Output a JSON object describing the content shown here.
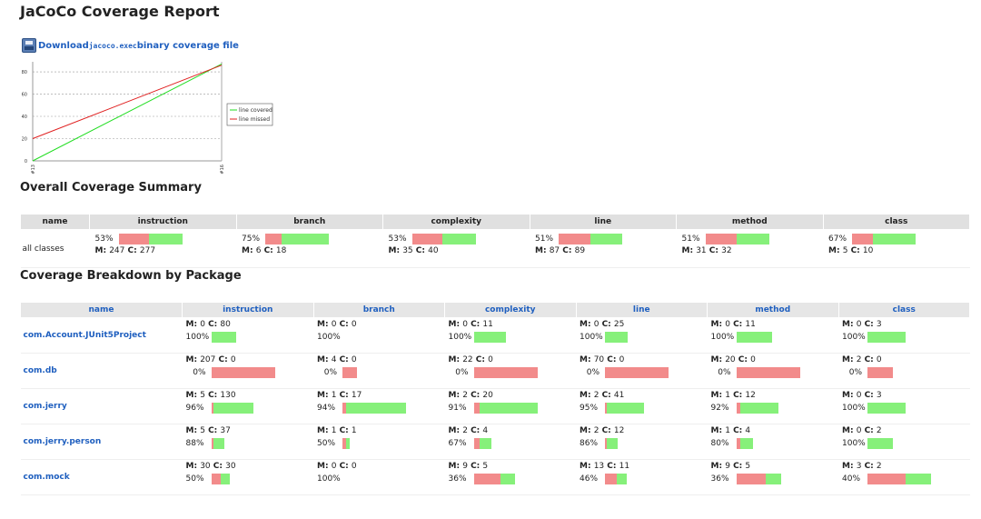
{
  "title": "JaCoCo Coverage Report",
  "download": {
    "prefix": "Download ",
    "file": "jacoco.exec",
    "suffix": " binary coverage file",
    "icon": "floppy-disk-icon"
  },
  "trend_chart": {
    "type": "line",
    "x": [
      "#13",
      "#16"
    ],
    "yticks": [
      0,
      20,
      40,
      60,
      80
    ],
    "ylim": [
      0,
      89
    ],
    "series": [
      {
        "name": "line covered",
        "values": [
          0,
          87
        ],
        "color": "#22dd22"
      },
      {
        "name": "line missed",
        "values": [
          20,
          86
        ],
        "color": "#e02020"
      }
    ]
  },
  "summary": {
    "heading": "Overall Coverage Summary",
    "headers": [
      "name",
      "instruction",
      "branch",
      "complexity",
      "line",
      "method",
      "class"
    ],
    "row": {
      "name": "all classes",
      "cells": [
        {
          "pct": "53%",
          "missed": "247",
          "covered": "277",
          "m": 247,
          "c": 277
        },
        {
          "pct": "75%",
          "missed": "6",
          "covered": "18",
          "m": 6,
          "c": 18
        },
        {
          "pct": "53%",
          "missed": "35",
          "covered": "40",
          "m": 35,
          "c": 40
        },
        {
          "pct": "51%",
          "missed": "87",
          "covered": "89",
          "m": 87,
          "c": 89
        },
        {
          "pct": "51%",
          "missed": "31",
          "covered": "32",
          "m": 31,
          "c": 32
        },
        {
          "pct": "67%",
          "missed": "5",
          "covered": "10",
          "m": 5,
          "c": 10
        }
      ]
    }
  },
  "packages": {
    "heading": "Coverage Breakdown by Package",
    "headers": [
      "name",
      "instruction",
      "branch",
      "complexity",
      "line",
      "method",
      "class"
    ],
    "rows": [
      {
        "name": "com.Account.JUnit5Project",
        "cells": [
          {
            "missed": "0",
            "covered": "80",
            "pct": "100%",
            "m": 0,
            "c": 80
          },
          {
            "missed": "0",
            "covered": "0",
            "pct": "100%",
            "m": 0,
            "c": 0
          },
          {
            "missed": "0",
            "covered": "11",
            "pct": "100%",
            "m": 0,
            "c": 11
          },
          {
            "missed": "0",
            "covered": "25",
            "pct": "100%",
            "m": 0,
            "c": 25
          },
          {
            "missed": "0",
            "covered": "11",
            "pct": "100%",
            "m": 0,
            "c": 11
          },
          {
            "missed": "0",
            "covered": "3",
            "pct": "100%",
            "m": 0,
            "c": 3
          }
        ]
      },
      {
        "name": "com.db",
        "cells": [
          {
            "missed": "207",
            "covered": "0",
            "pct": "0%",
            "m": 207,
            "c": 0
          },
          {
            "missed": "4",
            "covered": "0",
            "pct": "0%",
            "m": 4,
            "c": 0
          },
          {
            "missed": "22",
            "covered": "0",
            "pct": "0%",
            "m": 22,
            "c": 0
          },
          {
            "missed": "70",
            "covered": "0",
            "pct": "0%",
            "m": 70,
            "c": 0
          },
          {
            "missed": "20",
            "covered": "0",
            "pct": "0%",
            "m": 20,
            "c": 0
          },
          {
            "missed": "2",
            "covered": "0",
            "pct": "0%",
            "m": 2,
            "c": 0
          }
        ]
      },
      {
        "name": "com.jerry",
        "cells": [
          {
            "missed": "5",
            "covered": "130",
            "pct": "96%",
            "m": 5,
            "c": 130
          },
          {
            "missed": "1",
            "covered": "17",
            "pct": "94%",
            "m": 1,
            "c": 17
          },
          {
            "missed": "2",
            "covered": "20",
            "pct": "91%",
            "m": 2,
            "c": 20
          },
          {
            "missed": "2",
            "covered": "41",
            "pct": "95%",
            "m": 2,
            "c": 41
          },
          {
            "missed": "1",
            "covered": "12",
            "pct": "92%",
            "m": 1,
            "c": 12
          },
          {
            "missed": "0",
            "covered": "3",
            "pct": "100%",
            "m": 0,
            "c": 3
          }
        ]
      },
      {
        "name": "com.jerry.person",
        "cells": [
          {
            "missed": "5",
            "covered": "37",
            "pct": "88%",
            "m": 5,
            "c": 37
          },
          {
            "missed": "1",
            "covered": "1",
            "pct": "50%",
            "m": 1,
            "c": 1
          },
          {
            "missed": "2",
            "covered": "4",
            "pct": "67%",
            "m": 2,
            "c": 4
          },
          {
            "missed": "2",
            "covered": "12",
            "pct": "86%",
            "m": 2,
            "c": 12
          },
          {
            "missed": "1",
            "covered": "4",
            "pct": "80%",
            "m": 1,
            "c": 4
          },
          {
            "missed": "0",
            "covered": "2",
            "pct": "100%",
            "m": 0,
            "c": 2
          }
        ]
      },
      {
        "name": "com.mock",
        "cells": [
          {
            "missed": "30",
            "covered": "30",
            "pct": "50%",
            "m": 30,
            "c": 30
          },
          {
            "missed": "0",
            "covered": "0",
            "pct": "100%",
            "m": 0,
            "c": 0
          },
          {
            "missed": "9",
            "covered": "5",
            "pct": "36%",
            "m": 9,
            "c": 5
          },
          {
            "missed": "13",
            "covered": "11",
            "pct": "46%",
            "m": 13,
            "c": 11
          },
          {
            "missed": "9",
            "covered": "5",
            "pct": "36%",
            "m": 9,
            "c": 5
          },
          {
            "missed": "3",
            "covered": "2",
            "pct": "40%",
            "m": 3,
            "c": 2
          }
        ]
      }
    ]
  },
  "colors": {
    "missed_bar": "#f28b8b",
    "covered_bar": "#86f07a",
    "link": "#1f5fbf"
  }
}
